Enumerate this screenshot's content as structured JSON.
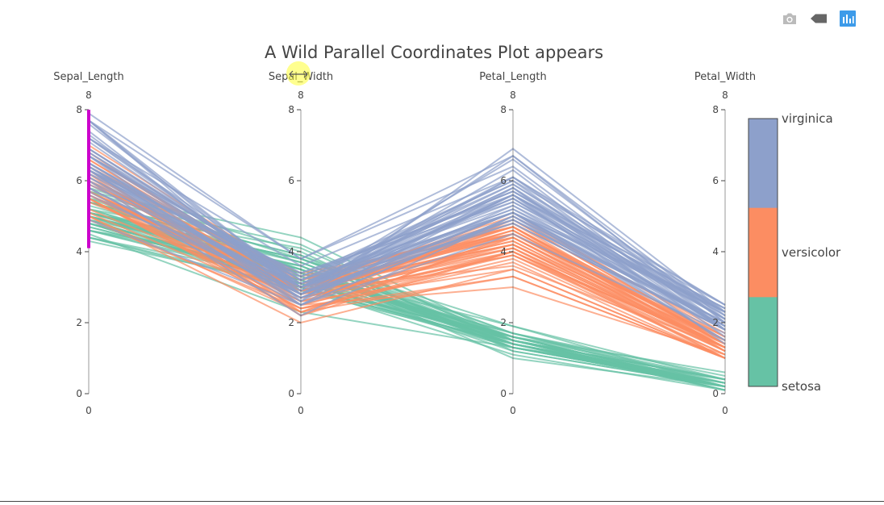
{
  "toolbar": {
    "buttons": [
      {
        "name": "download-plot-button",
        "icon": "camera-icon",
        "title": "Download plot as a png"
      },
      {
        "name": "toggle-hover-button",
        "icon": "tag-icon",
        "title": "Toggle show closest data on hover"
      },
      {
        "name": "produced-with-plotly-button",
        "icon": "bar-chart-icon",
        "title": "Produced with Plotly"
      }
    ]
  },
  "colors": {
    "setosa": "#66c2a5",
    "versicolor": "#fc8d62",
    "virginica": "#8da0cb",
    "brush": "#cc00cc",
    "axis": "#444444",
    "logo": "#3d9be9",
    "icon": "#bbbbbb"
  },
  "chart_data": {
    "type": "parallel-coordinates",
    "title": "A Wild Parallel Coordinates Plot appears",
    "dimensions": [
      {
        "label": "Sepal_Length",
        "range": [
          0,
          8
        ],
        "ticks": [
          0,
          2,
          4,
          6,
          8
        ],
        "range_labels": [
          "8",
          "0"
        ],
        "constraint_range": [
          4.1,
          8
        ]
      },
      {
        "label": "Sepal_Width",
        "range": [
          0,
          8
        ],
        "ticks": [
          0,
          2,
          4,
          6,
          8
        ],
        "range_labels": [
          "8",
          "0"
        ]
      },
      {
        "label": "Petal_Length",
        "range": [
          0,
          8
        ],
        "ticks": [
          0,
          2,
          4,
          6,
          8
        ],
        "range_labels": [
          "8",
          "0"
        ]
      },
      {
        "label": "Petal_Width",
        "range": [
          0,
          8
        ],
        "ticks": [
          0,
          2,
          4,
          6,
          8
        ],
        "range_labels": [
          "8",
          "0"
        ]
      }
    ],
    "colorbar": {
      "ticks": [
        {
          "label": "virginica",
          "value": 3
        },
        {
          "label": "versicolor",
          "value": 2
        },
        {
          "label": "setosa",
          "value": 1
        }
      ],
      "range": [
        1,
        3
      ]
    },
    "series": [
      {
        "name": "setosa",
        "color": "#66c2a5",
        "records": [
          [
            5.1,
            3.5,
            1.4,
            0.2
          ],
          [
            4.9,
            3.0,
            1.4,
            0.2
          ],
          [
            4.7,
            3.2,
            1.3,
            0.2
          ],
          [
            4.6,
            3.1,
            1.5,
            0.2
          ],
          [
            5.0,
            3.6,
            1.4,
            0.2
          ],
          [
            5.4,
            3.9,
            1.7,
            0.4
          ],
          [
            4.6,
            3.4,
            1.4,
            0.3
          ],
          [
            5.0,
            3.4,
            1.5,
            0.2
          ],
          [
            4.4,
            2.9,
            1.4,
            0.2
          ],
          [
            4.9,
            3.1,
            1.5,
            0.1
          ],
          [
            5.4,
            3.7,
            1.5,
            0.2
          ],
          [
            4.8,
            3.4,
            1.6,
            0.2
          ],
          [
            4.8,
            3.0,
            1.4,
            0.1
          ],
          [
            4.3,
            3.0,
            1.1,
            0.1
          ],
          [
            5.8,
            4.0,
            1.2,
            0.2
          ],
          [
            5.7,
            4.4,
            1.5,
            0.4
          ],
          [
            5.4,
            3.9,
            1.3,
            0.4
          ],
          [
            5.1,
            3.5,
            1.4,
            0.3
          ],
          [
            5.7,
            3.8,
            1.7,
            0.3
          ],
          [
            5.1,
            3.8,
            1.5,
            0.3
          ],
          [
            5.4,
            3.4,
            1.7,
            0.2
          ],
          [
            5.1,
            3.7,
            1.5,
            0.4
          ],
          [
            4.6,
            3.6,
            1.0,
            0.2
          ],
          [
            5.1,
            3.3,
            1.7,
            0.5
          ],
          [
            4.8,
            3.4,
            1.9,
            0.2
          ],
          [
            5.0,
            3.0,
            1.6,
            0.2
          ],
          [
            5.0,
            3.4,
            1.6,
            0.4
          ],
          [
            5.2,
            3.5,
            1.5,
            0.2
          ],
          [
            5.2,
            3.4,
            1.4,
            0.2
          ],
          [
            4.7,
            3.2,
            1.6,
            0.2
          ],
          [
            4.8,
            3.1,
            1.6,
            0.2
          ],
          [
            5.4,
            3.4,
            1.5,
            0.4
          ],
          [
            5.2,
            4.1,
            1.5,
            0.1
          ],
          [
            5.5,
            4.2,
            1.4,
            0.2
          ],
          [
            4.9,
            3.1,
            1.5,
            0.2
          ],
          [
            5.0,
            3.2,
            1.2,
            0.2
          ],
          [
            5.5,
            3.5,
            1.3,
            0.2
          ],
          [
            4.9,
            3.6,
            1.4,
            0.1
          ],
          [
            4.4,
            3.0,
            1.3,
            0.2
          ],
          [
            5.1,
            3.4,
            1.5,
            0.2
          ],
          [
            5.0,
            3.5,
            1.3,
            0.3
          ],
          [
            4.5,
            2.3,
            1.3,
            0.3
          ],
          [
            4.4,
            3.2,
            1.3,
            0.2
          ],
          [
            5.0,
            3.5,
            1.6,
            0.6
          ],
          [
            5.1,
            3.8,
            1.9,
            0.4
          ],
          [
            4.8,
            3.0,
            1.4,
            0.3
          ],
          [
            5.1,
            3.8,
            1.6,
            0.2
          ],
          [
            4.6,
            3.2,
            1.4,
            0.2
          ],
          [
            5.3,
            3.7,
            1.5,
            0.2
          ],
          [
            5.0,
            3.3,
            1.4,
            0.2
          ]
        ]
      },
      {
        "name": "versicolor",
        "color": "#fc8d62",
        "records": [
          [
            7.0,
            3.2,
            4.7,
            1.4
          ],
          [
            6.4,
            3.2,
            4.5,
            1.5
          ],
          [
            6.9,
            3.1,
            4.9,
            1.5
          ],
          [
            5.5,
            2.3,
            4.0,
            1.3
          ],
          [
            6.5,
            2.8,
            4.6,
            1.5
          ],
          [
            5.7,
            2.8,
            4.5,
            1.3
          ],
          [
            6.3,
            3.3,
            4.7,
            1.6
          ],
          [
            4.9,
            2.4,
            3.3,
            1.0
          ],
          [
            6.6,
            2.9,
            4.6,
            1.3
          ],
          [
            5.2,
            2.7,
            3.9,
            1.4
          ],
          [
            5.0,
            2.0,
            3.5,
            1.0
          ],
          [
            5.9,
            3.0,
            4.2,
            1.5
          ],
          [
            6.0,
            2.2,
            4.0,
            1.0
          ],
          [
            6.1,
            2.9,
            4.7,
            1.4
          ],
          [
            5.6,
            2.9,
            3.6,
            1.3
          ],
          [
            6.7,
            3.1,
            4.4,
            1.4
          ],
          [
            5.6,
            3.0,
            4.5,
            1.5
          ],
          [
            5.8,
            2.7,
            4.1,
            1.0
          ],
          [
            6.2,
            2.2,
            4.5,
            1.5
          ],
          [
            5.6,
            2.5,
            3.9,
            1.1
          ],
          [
            5.9,
            3.2,
            4.8,
            1.8
          ],
          [
            6.1,
            2.8,
            4.0,
            1.3
          ],
          [
            6.3,
            2.5,
            4.9,
            1.5
          ],
          [
            6.1,
            2.8,
            4.7,
            1.2
          ],
          [
            6.4,
            2.9,
            4.3,
            1.3
          ],
          [
            6.6,
            3.0,
            4.4,
            1.4
          ],
          [
            6.8,
            2.8,
            4.8,
            1.4
          ],
          [
            6.7,
            3.0,
            5.0,
            1.7
          ],
          [
            6.0,
            2.9,
            4.5,
            1.5
          ],
          [
            5.7,
            2.6,
            3.5,
            1.0
          ],
          [
            5.5,
            2.4,
            3.8,
            1.1
          ],
          [
            5.5,
            2.4,
            3.7,
            1.0
          ],
          [
            5.8,
            2.7,
            3.9,
            1.2
          ],
          [
            6.0,
            2.7,
            5.1,
            1.6
          ],
          [
            5.4,
            3.0,
            4.5,
            1.5
          ],
          [
            6.0,
            3.4,
            4.5,
            1.6
          ],
          [
            6.7,
            3.1,
            4.7,
            1.5
          ],
          [
            6.3,
            2.3,
            4.4,
            1.3
          ],
          [
            5.6,
            3.0,
            4.1,
            1.3
          ],
          [
            5.5,
            2.5,
            4.0,
            1.3
          ],
          [
            5.5,
            2.6,
            4.4,
            1.2
          ],
          [
            6.1,
            3.0,
            4.6,
            1.4
          ],
          [
            5.8,
            2.6,
            4.0,
            1.2
          ],
          [
            5.0,
            2.3,
            3.3,
            1.0
          ],
          [
            5.6,
            2.7,
            4.2,
            1.3
          ],
          [
            5.7,
            3.0,
            4.2,
            1.2
          ],
          [
            5.7,
            2.9,
            4.2,
            1.3
          ],
          [
            6.2,
            2.9,
            4.3,
            1.3
          ],
          [
            5.1,
            2.5,
            3.0,
            1.1
          ],
          [
            5.7,
            2.8,
            4.1,
            1.3
          ]
        ]
      },
      {
        "name": "virginica",
        "color": "#8da0cb",
        "records": [
          [
            6.3,
            3.3,
            6.0,
            2.5
          ],
          [
            5.8,
            2.7,
            5.1,
            1.9
          ],
          [
            7.1,
            3.0,
            5.9,
            2.1
          ],
          [
            6.3,
            2.9,
            5.6,
            1.8
          ],
          [
            6.5,
            3.0,
            5.8,
            2.2
          ],
          [
            7.6,
            3.0,
            6.6,
            2.1
          ],
          [
            4.9,
            2.5,
            4.5,
            1.7
          ],
          [
            7.3,
            2.9,
            6.3,
            1.8
          ],
          [
            6.7,
            2.5,
            5.8,
            1.8
          ],
          [
            7.2,
            3.6,
            6.1,
            2.5
          ],
          [
            6.5,
            3.2,
            5.1,
            2.0
          ],
          [
            6.4,
            2.7,
            5.3,
            1.9
          ],
          [
            6.8,
            3.0,
            5.5,
            2.1
          ],
          [
            5.7,
            2.5,
            5.0,
            2.0
          ],
          [
            5.8,
            2.8,
            5.1,
            2.4
          ],
          [
            6.4,
            3.2,
            5.3,
            2.3
          ],
          [
            6.5,
            3.0,
            5.5,
            1.8
          ],
          [
            7.7,
            3.8,
            6.7,
            2.2
          ],
          [
            7.7,
            2.6,
            6.9,
            2.3
          ],
          [
            6.0,
            2.2,
            5.0,
            1.5
          ],
          [
            6.9,
            3.2,
            5.7,
            2.3
          ],
          [
            5.6,
            2.8,
            4.9,
            2.0
          ],
          [
            7.7,
            2.8,
            6.7,
            2.0
          ],
          [
            6.3,
            2.7,
            4.9,
            1.8
          ],
          [
            6.7,
            3.3,
            5.7,
            2.1
          ],
          [
            7.2,
            3.2,
            6.0,
            1.8
          ],
          [
            6.2,
            2.8,
            4.8,
            1.8
          ],
          [
            6.1,
            3.0,
            4.9,
            1.8
          ],
          [
            6.4,
            2.8,
            5.6,
            2.1
          ],
          [
            7.2,
            3.0,
            5.8,
            1.6
          ],
          [
            7.4,
            2.8,
            6.1,
            1.9
          ],
          [
            7.9,
            3.8,
            6.4,
            2.0
          ],
          [
            6.4,
            2.8,
            5.6,
            2.2
          ],
          [
            6.3,
            2.8,
            5.1,
            1.5
          ],
          [
            6.1,
            2.6,
            5.6,
            1.4
          ],
          [
            7.7,
            3.0,
            6.1,
            2.3
          ],
          [
            6.3,
            3.4,
            5.6,
            2.4
          ],
          [
            6.4,
            3.1,
            5.5,
            1.8
          ],
          [
            6.0,
            3.0,
            4.8,
            1.8
          ],
          [
            6.9,
            3.1,
            5.4,
            2.1
          ],
          [
            6.7,
            3.1,
            5.6,
            2.4
          ],
          [
            6.9,
            3.1,
            5.1,
            2.3
          ],
          [
            5.8,
            2.7,
            5.1,
            1.9
          ],
          [
            6.8,
            3.2,
            5.9,
            2.3
          ],
          [
            6.7,
            3.3,
            5.7,
            2.5
          ],
          [
            6.7,
            3.0,
            5.2,
            2.3
          ],
          [
            6.3,
            2.5,
            5.0,
            1.9
          ],
          [
            6.5,
            3.0,
            5.2,
            2.0
          ],
          [
            6.2,
            3.4,
            5.4,
            2.3
          ],
          [
            5.9,
            3.0,
            5.1,
            1.8
          ]
        ]
      }
    ]
  }
}
